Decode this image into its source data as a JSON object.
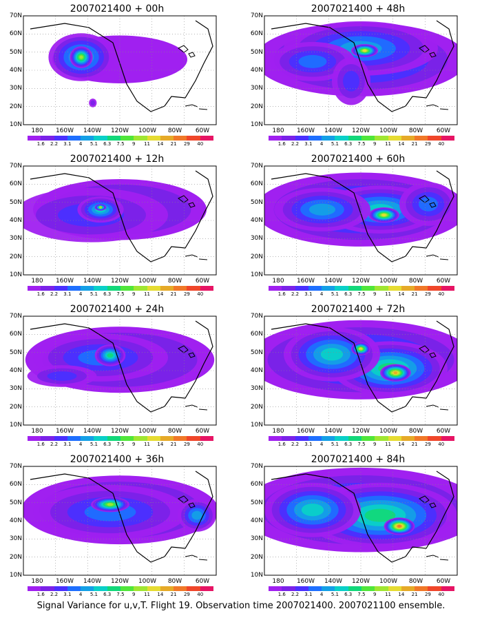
{
  "footer": "Signal Variance for u,v,T. Flight 19. Observation time 2007021400. 2007021100 ensemble.",
  "axes": {
    "lat_labels": [
      "70N",
      "60N",
      "50N",
      "40N",
      "30N",
      "20N",
      "10N"
    ],
    "lon_labels": [
      "180",
      "160W",
      "140W",
      "120W",
      "100W",
      "80W",
      "60W"
    ]
  },
  "colorbar": {
    "labels": [
      "1.6",
      "2.2",
      "3.1",
      "4",
      "5.1",
      "6.3",
      "7.5",
      "9",
      "11",
      "14",
      "21",
      "29",
      "40"
    ],
    "colors": [
      "#a020f0",
      "#7a22e8",
      "#4a30ff",
      "#1e6fff",
      "#14a0e6",
      "#0ad0c8",
      "#12d87a",
      "#50e63a",
      "#a0e632",
      "#e6dc32",
      "#e6aa28",
      "#f07828",
      "#f0462a",
      "#e61464"
    ]
  },
  "panels": [
    {
      "title": "2007021400 + 00h"
    },
    {
      "title": "2007021400 + 48h"
    },
    {
      "title": "2007021400 + 12h"
    },
    {
      "title": "2007021400 + 60h"
    },
    {
      "title": "2007021400 + 24h"
    },
    {
      "title": "2007021400 + 72h"
    },
    {
      "title": "2007021400 + 36h"
    },
    {
      "title": "2007021400 + 84h"
    }
  ]
}
